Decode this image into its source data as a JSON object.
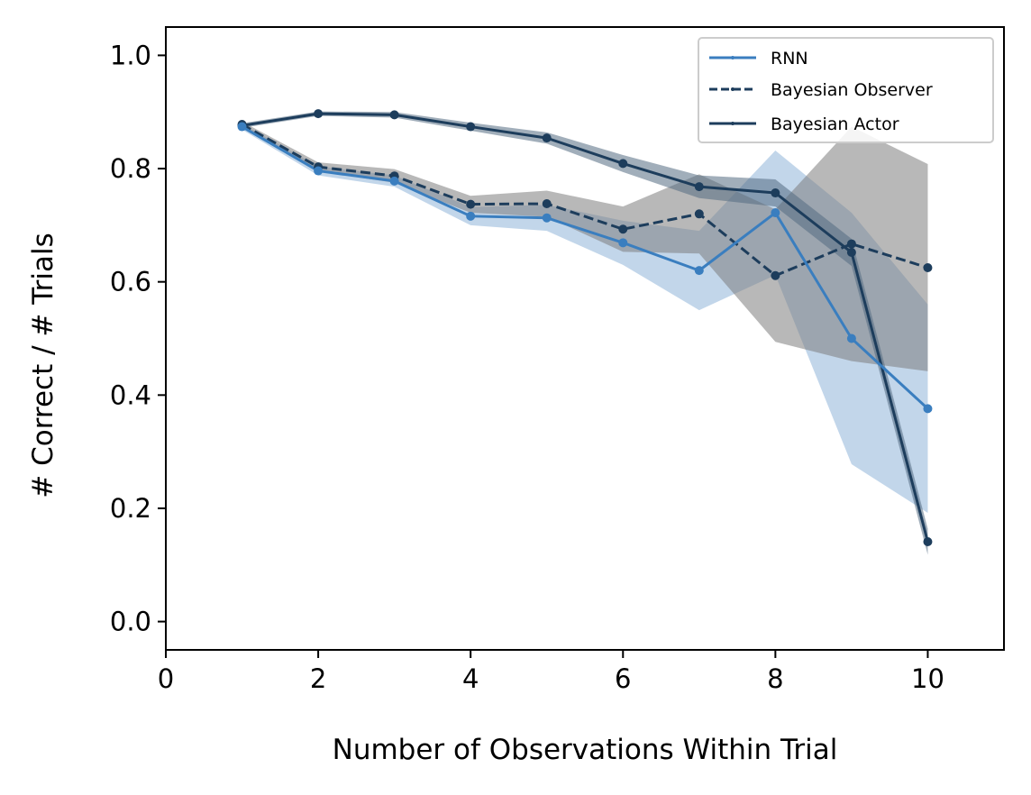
{
  "chart_data": {
    "type": "line",
    "title": "",
    "xlabel": "Number of Observations Within Trial",
    "ylabel": "# Correct / # Trials",
    "xlim": [
      0,
      11
    ],
    "ylim": [
      -0.05,
      1.05
    ],
    "xticks": [
      0,
      2,
      4,
      6,
      8,
      10
    ],
    "yticks": [
      0.0,
      0.2,
      0.4,
      0.6,
      0.8,
      1.0
    ],
    "xtick_labels": [
      "0",
      "2",
      "4",
      "6",
      "8",
      "10"
    ],
    "ytick_labels": [
      "0.0",
      "0.2",
      "0.4",
      "0.6",
      "0.8",
      "1.0"
    ],
    "grid": false,
    "legend_position": "top-right",
    "x": [
      1,
      2,
      3,
      4,
      5,
      6,
      7,
      8,
      9,
      10
    ],
    "series": [
      {
        "name": "RNN",
        "values": [
          0.874,
          0.796,
          0.778,
          0.716,
          0.713,
          0.669,
          0.62,
          0.722,
          0.5,
          0.376
        ],
        "lower": [
          0.869,
          0.788,
          0.768,
          0.7,
          0.69,
          0.63,
          0.55,
          0.612,
          0.278,
          0.192
        ],
        "upper": [
          0.879,
          0.804,
          0.788,
          0.732,
          0.736,
          0.708,
          0.69,
          0.832,
          0.722,
          0.56
        ],
        "color": "#3a7ebf",
        "band_color": "#8fb4d8",
        "linestyle": "solid"
      },
      {
        "name": "Bayesian Observer",
        "values": [
          0.878,
          0.803,
          0.787,
          0.737,
          0.738,
          0.693,
          0.72,
          0.611,
          0.667,
          0.625
        ],
        "lower": [
          0.873,
          0.795,
          0.775,
          0.722,
          0.715,
          0.653,
          0.65,
          0.494,
          0.46,
          0.442
        ],
        "upper": [
          0.883,
          0.811,
          0.799,
          0.752,
          0.761,
          0.733,
          0.79,
          0.728,
          0.874,
          0.808
        ],
        "color": "#1d3d5c",
        "band_color": "#7d7d7d",
        "linestyle": "dashed"
      },
      {
        "name": "Bayesian Actor",
        "values": [
          0.876,
          0.897,
          0.895,
          0.874,
          0.854,
          0.809,
          0.768,
          0.757,
          0.652,
          0.141
        ],
        "lower": [
          0.872,
          0.893,
          0.89,
          0.867,
          0.844,
          0.794,
          0.748,
          0.733,
          0.628,
          0.118
        ],
        "upper": [
          0.88,
          0.901,
          0.9,
          0.881,
          0.864,
          0.824,
          0.788,
          0.781,
          0.676,
          0.164
        ],
        "color": "#1d3d5c",
        "band_color": "#536b82",
        "linestyle": "solid"
      }
    ]
  }
}
